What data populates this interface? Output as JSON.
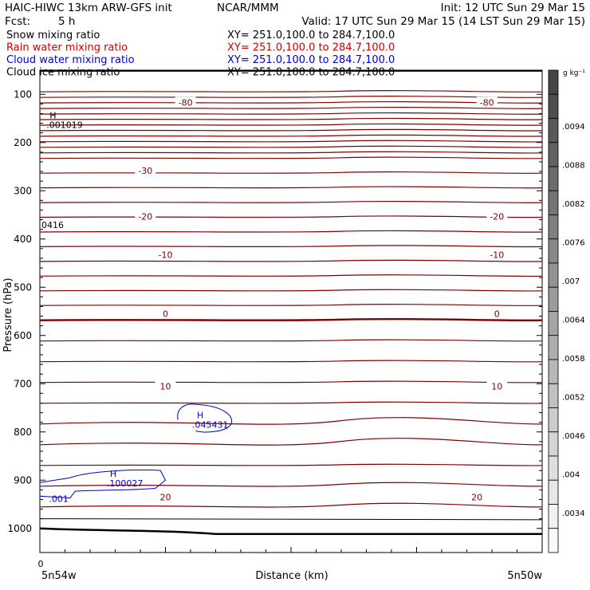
{
  "header": {
    "title_left": "HAIC-HIWC 13km ARW-GFS init",
    "org": "NCAR/MMM",
    "init": "Init: 12 UTC Sun 29 Mar 15",
    "fcst_label": "Fcst:",
    "fcst_value": "5 h",
    "valid": "Valid: 17 UTC Sun 29 Mar 15 (14 LST Sun 29 Mar 15)"
  },
  "fields": [
    {
      "name": "Snow mixing ratio",
      "xy": "XY= 251.0,100.0 to 284.7,100.0",
      "color": "#000000"
    },
    {
      "name": "Rain water mixing ratio",
      "xy": "XY= 251.0,100.0 to 284.7,100.0",
      "color": "#cc0000"
    },
    {
      "name": "Cloud water mixing ratio",
      "xy": "XY= 251.0,100.0 to 284.7,100.0",
      "color": "#0000cc"
    },
    {
      "name": "Cloud ice mixing ratio",
      "xy": "XY= 251.0,100.0 to 284.7,100.0",
      "color": "#000000"
    }
  ],
  "chart_data": {
    "type": "line",
    "ylabel": "Pressure (hPa)",
    "xlabel": "Distance (km)",
    "ylim": [
      1050,
      50
    ],
    "y_ticks": [
      100,
      200,
      300,
      400,
      500,
      600,
      700,
      800,
      900,
      1000
    ],
    "x_start_label": "0",
    "x_left_label": "5n54w",
    "x_right_label": "5n50w",
    "temperature_contours": {
      "color": "#800000",
      "levels": [
        {
          "label": "-80",
          "p": 117,
          "positions": [
            0.29,
            0.89
          ]
        },
        {
          "label": "-30",
          "p": 258,
          "positions": [
            0.21
          ]
        },
        {
          "label": "-20",
          "p": 353,
          "positions": [
            0.21,
            0.91
          ]
        },
        {
          "label": "-10",
          "p": 433,
          "positions": [
            0.25,
            0.91
          ]
        },
        {
          "label": "0",
          "p": 555,
          "positions": [
            0.25,
            0.91
          ]
        },
        {
          "label": "10",
          "p": 705,
          "positions": [
            0.25,
            0.91
          ]
        },
        {
          "label": "20",
          "p": 935,
          "positions": [
            0.25,
            0.87
          ]
        }
      ]
    },
    "maxima": [
      {
        "symbol": "H",
        "value": ".001019",
        "p": 160,
        "color": "#000000"
      },
      {
        "symbol": "",
        "value": "0416",
        "p": 367,
        "color": "#000000"
      },
      {
        "symbol": "H",
        "value": ".045431",
        "p": 781,
        "color": "#0000cc"
      },
      {
        "symbol": "H",
        "value": ".100027",
        "p": 903,
        "color": "#0000cc"
      },
      {
        "symbol": "",
        "value": ".001",
        "p": 935,
        "color": "#0000cc"
      }
    ],
    "colorbar": {
      "unit": "g kg⁻¹",
      "labels": [
        ".0094",
        ".0088",
        ".0082",
        ".0076",
        ".007",
        ".0064",
        ".0058",
        ".0052",
        ".0046",
        ".004",
        ".0034"
      ]
    }
  }
}
